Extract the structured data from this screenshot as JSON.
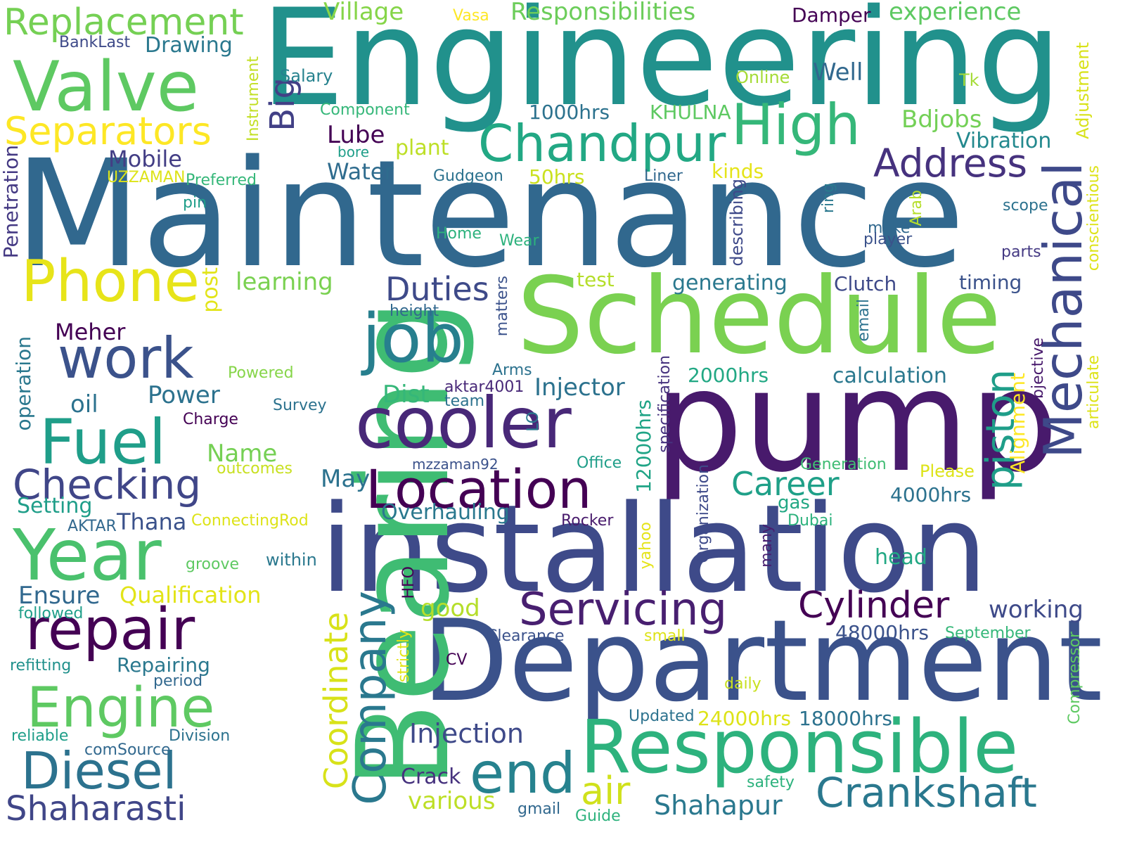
{
  "words": [
    {
      "text": "Engineering",
      "color": "#21918c",
      "vertical": false
    },
    {
      "text": "Maintenance",
      "color": "#31688e",
      "vertical": false
    },
    {
      "text": "installation",
      "color": "#3e4a89",
      "vertical": false
    },
    {
      "text": "pump",
      "color": "#481a6c",
      "vertical": false
    },
    {
      "text": "Schedule",
      "color": "#7ad151",
      "vertical": false
    },
    {
      "text": "Department",
      "color": "#3b528b",
      "vertical": false
    },
    {
      "text": "Bearing",
      "color": "#3fbc73",
      "vertical": true
    },
    {
      "text": "Responsible",
      "color": "#2db27d",
      "vertical": false
    },
    {
      "text": "Valve",
      "color": "#5ec962",
      "vertical": false
    },
    {
      "text": "Replacement",
      "color": "#75d054",
      "vertical": false
    },
    {
      "text": "Separators",
      "color": "#fde725",
      "vertical": false
    },
    {
      "text": "Chandpur",
      "color": "#22a884",
      "vertical": false
    },
    {
      "text": "High",
      "color": "#35b779",
      "vertical": false
    },
    {
      "text": "Address",
      "color": "#46327e",
      "vertical": false
    },
    {
      "text": "Mechanical",
      "color": "#3e4989",
      "vertical": true
    },
    {
      "text": "cooler",
      "color": "#482878",
      "vertical": false
    },
    {
      "text": "job",
      "color": "#277f8e",
      "vertical": false
    },
    {
      "text": "Location",
      "color": "#440154",
      "vertical": false
    },
    {
      "text": "Phone",
      "color": "#e7e419",
      "vertical": false
    },
    {
      "text": "work",
      "color": "#3b528b",
      "vertical": false
    },
    {
      "text": "Fuel",
      "color": "#1f9e89",
      "vertical": false
    },
    {
      "text": "Checking",
      "color": "#404688",
      "vertical": false
    },
    {
      "text": "Year",
      "color": "#4ac16d",
      "vertical": false
    },
    {
      "text": "repair",
      "color": "#440154",
      "vertical": false
    },
    {
      "text": "Engine",
      "color": "#5ec962",
      "vertical": false
    },
    {
      "text": "Diesel",
      "color": "#2c728e",
      "vertical": false
    },
    {
      "text": "Shaharasti",
      "color": "#404688",
      "vertical": false
    },
    {
      "text": "Company",
      "color": "#2a788e",
      "vertical": true
    },
    {
      "text": "Coordinate",
      "color": "#d8e219",
      "vertical": true
    },
    {
      "text": "end",
      "color": "#26828e",
      "vertical": false
    },
    {
      "text": "Crankshaft",
      "color": "#2a788e",
      "vertical": false
    },
    {
      "text": "Cylinder",
      "color": "#440154",
      "vertical": false
    },
    {
      "text": "Servicing",
      "color": "#481f70",
      "vertical": false
    },
    {
      "text": "piston",
      "color": "#1f9e89",
      "vertical": true
    },
    {
      "text": "Career",
      "color": "#1fa088",
      "vertical": false
    },
    {
      "text": "Duties",
      "color": "#3e4a89",
      "vertical": false
    },
    {
      "text": "air",
      "color": "#d0e11c",
      "vertical": false
    },
    {
      "text": "Shahapur",
      "color": "#2a788e",
      "vertical": false
    },
    {
      "text": "Injection",
      "color": "#3e4989",
      "vertical": false
    },
    {
      "text": "various",
      "color": "#bddf26",
      "vertical": false
    },
    {
      "text": "Big",
      "color": "#424086",
      "vertical": true
    },
    {
      "text": "Mobile",
      "color": "#433e85",
      "vertical": false
    },
    {
      "text": "Lube",
      "color": "#440154",
      "vertical": false
    },
    {
      "text": "Water",
      "color": "#2f6c8e",
      "vertical": false
    },
    {
      "text": "plant",
      "color": "#bddf26",
      "vertical": false
    },
    {
      "text": "Bdjobs",
      "color": "#73d056",
      "vertical": false
    },
    {
      "text": "Vibration",
      "color": "#23898e",
      "vertical": false
    },
    {
      "text": "Village",
      "color": "#86d549",
      "vertical": false
    },
    {
      "text": "Vasa",
      "color": "#fde725",
      "vertical": false
    },
    {
      "text": "Responsibilities",
      "color": "#6ccd5a",
      "vertical": false
    },
    {
      "text": "Damper",
      "color": "#440154",
      "vertical": false
    },
    {
      "text": "experience",
      "color": "#5ec962",
      "vertical": false
    },
    {
      "text": "BankLast",
      "color": "#3e4a89",
      "vertical": false
    },
    {
      "text": "Drawing",
      "color": "#2a788e",
      "vertical": false
    },
    {
      "text": "Salary",
      "color": "#26828e",
      "vertical": false
    },
    {
      "text": "Online",
      "color": "#a5db36",
      "vertical": false
    },
    {
      "text": "Tk",
      "color": "#a5db36",
      "vertical": false
    },
    {
      "text": "Well",
      "color": "#31688e",
      "vertical": false
    },
    {
      "text": "Component",
      "color": "#35b779",
      "vertical": false
    },
    {
      "text": "1000hrs",
      "color": "#2c728e",
      "vertical": false
    },
    {
      "text": "KHULNA",
      "color": "#5ec962",
      "vertical": false
    },
    {
      "text": "Adjustment",
      "color": "#d8e219",
      "vertical": true
    },
    {
      "text": "Instrument",
      "color": "#c2df23",
      "vertical": true
    },
    {
      "text": "bore",
      "color": "#1f9e89",
      "vertical": false
    },
    {
      "text": "UZZAMAN",
      "color": "#dde318",
      "vertical": false
    },
    {
      "text": "Preferred",
      "color": "#35b779",
      "vertical": false
    },
    {
      "text": "Gudgeon",
      "color": "#2c728e",
      "vertical": false
    },
    {
      "text": "50hrs",
      "color": "#cae11f",
      "vertical": false
    },
    {
      "text": "Liner",
      "color": "#31688e",
      "vertical": false
    },
    {
      "text": "kinds",
      "color": "#e5e419",
      "vertical": false
    },
    {
      "text": "Penetration",
      "color": "#443983",
      "vertical": true
    },
    {
      "text": "pin",
      "color": "#1f9e89",
      "vertical": false
    },
    {
      "text": "Home",
      "color": "#2db27d",
      "vertical": false
    },
    {
      "text": "Wear",
      "color": "#2db27d",
      "vertical": false
    },
    {
      "text": "make",
      "color": "#31688e",
      "vertical": false
    },
    {
      "text": "player",
      "color": "#3b528b",
      "vertical": false
    },
    {
      "text": "scope",
      "color": "#2c728e",
      "vertical": false
    },
    {
      "text": "parts",
      "color": "#443983",
      "vertical": false
    },
    {
      "text": "conscientious",
      "color": "#dde318",
      "vertical": true
    },
    {
      "text": "Arab",
      "color": "#b5de2b",
      "vertical": true
    },
    {
      "text": "ring",
      "color": "#2a788e",
      "vertical": true
    },
    {
      "text": "describing",
      "color": "#3e4989",
      "vertical": true
    },
    {
      "text": "post",
      "color": "#e2e418",
      "vertical": true
    },
    {
      "text": "learning",
      "color": "#7ad151",
      "vertical": false
    },
    {
      "text": "test",
      "color": "#b5de2b",
      "vertical": false
    },
    {
      "text": "generating",
      "color": "#2a788e",
      "vertical": false
    },
    {
      "text": "Clutch",
      "color": "#3e4989",
      "vertical": false
    },
    {
      "text": "timing",
      "color": "#3b528b",
      "vertical": false
    },
    {
      "text": "height",
      "color": "#31688e",
      "vertical": false
    },
    {
      "text": "matters",
      "color": "#3b528b",
      "vertical": true
    },
    {
      "text": "email",
      "color": "#2c728e",
      "vertical": true
    },
    {
      "text": "Objective",
      "color": "#481a6c",
      "vertical": true
    },
    {
      "text": "articulate",
      "color": "#dde318",
      "vertical": true
    },
    {
      "text": "Meher",
      "color": "#440154",
      "vertical": false
    },
    {
      "text": "Arms",
      "color": "#2c728e",
      "vertical": false
    },
    {
      "text": "aktar4001",
      "color": "#482878",
      "vertical": false
    },
    {
      "text": "team",
      "color": "#2c728e",
      "vertical": false
    },
    {
      "text": "Injector",
      "color": "#2c728e",
      "vertical": false
    },
    {
      "text": "specification",
      "color": "#46327e",
      "vertical": true
    },
    {
      "text": "2000hrs",
      "color": "#22a884",
      "vertical": false
    },
    {
      "text": "calculation",
      "color": "#2a788e",
      "vertical": false
    },
    {
      "text": "operation",
      "color": "#2a788e",
      "vertical": true
    },
    {
      "text": "Powered",
      "color": "#86d549",
      "vertical": false
    },
    {
      "text": "Power",
      "color": "#2c728e",
      "vertical": false
    },
    {
      "text": "Dist",
      "color": "#35b779",
      "vertical": false
    },
    {
      "text": "oil",
      "color": "#2c728e",
      "vertical": false
    },
    {
      "text": "Survey",
      "color": "#2c728e",
      "vertical": false
    },
    {
      "text": "Charge",
      "color": "#440154",
      "vertical": false
    },
    {
      "text": "LO",
      "color": "#2a788e",
      "vertical": true
    },
    {
      "text": "12000hrs",
      "color": "#20a486",
      "vertical": true
    },
    {
      "text": "Alignment",
      "color": "#fde725",
      "vertical": true
    },
    {
      "text": "Name",
      "color": "#75d054",
      "vertical": false
    },
    {
      "text": "outcomes",
      "color": "#c8e020",
      "vertical": false
    },
    {
      "text": "mzzaman92",
      "color": "#3b528b",
      "vertical": false
    },
    {
      "text": "Office",
      "color": "#1f9e89",
      "vertical": false
    },
    {
      "text": "Generation",
      "color": "#3fbc73",
      "vertical": false
    },
    {
      "text": "Please",
      "color": "#dde318",
      "vertical": false
    },
    {
      "text": "May",
      "color": "#2c728e",
      "vertical": false
    },
    {
      "text": "Organization",
      "color": "#3e4a89",
      "vertical": true
    },
    {
      "text": "4000hrs",
      "color": "#2c728e",
      "vertical": false
    },
    {
      "text": "Setting",
      "color": "#1f9e89",
      "vertical": false
    },
    {
      "text": "AKTAR",
      "color": "#31688e",
      "vertical": false
    },
    {
      "text": "Thana",
      "color": "#3b528b",
      "vertical": false
    },
    {
      "text": "ConnectingRod",
      "color": "#dde318",
      "vertical": false
    },
    {
      "text": "Overhauling",
      "color": "#2a788e",
      "vertical": false
    },
    {
      "text": "gas",
      "color": "#22a884",
      "vertical": false
    },
    {
      "text": "Rocker",
      "color": "#481a6c",
      "vertical": false
    },
    {
      "text": "Dubai",
      "color": "#2db27d",
      "vertical": false
    },
    {
      "text": "yahoo",
      "color": "#e5e419",
      "vertical": true
    },
    {
      "text": "many",
      "color": "#481f70",
      "vertical": true
    },
    {
      "text": "groove",
      "color": "#5ec962",
      "vertical": false
    },
    {
      "text": "within",
      "color": "#2a788e",
      "vertical": false
    },
    {
      "text": "head",
      "color": "#22a884",
      "vertical": false
    },
    {
      "text": "Ensure",
      "color": "#31688e",
      "vertical": false
    },
    {
      "text": "Qualification",
      "color": "#e2e418",
      "vertical": false
    },
    {
      "text": "HFO",
      "color": "#440154",
      "vertical": true
    },
    {
      "text": "followed",
      "color": "#1f9e89",
      "vertical": false
    },
    {
      "text": "good",
      "color": "#b5de2b",
      "vertical": false
    },
    {
      "text": "working",
      "color": "#3e4a89",
      "vertical": false
    },
    {
      "text": "refitting",
      "color": "#21918c",
      "vertical": false
    },
    {
      "text": "Repairing",
      "color": "#2a788e",
      "vertical": false
    },
    {
      "text": "period",
      "color": "#31688e",
      "vertical": false
    },
    {
      "text": "strictly",
      "color": "#e2e418",
      "vertical": true
    },
    {
      "text": "Clearance",
      "color": "#3b528b",
      "vertical": false
    },
    {
      "text": "small",
      "color": "#dde318",
      "vertical": false
    },
    {
      "text": "48000hrs",
      "color": "#3b528b",
      "vertical": false
    },
    {
      "text": "September",
      "color": "#35b779",
      "vertical": false
    },
    {
      "text": "Compressor",
      "color": "#5ec962",
      "vertical": true
    },
    {
      "text": "CV",
      "color": "#440154",
      "vertical": false
    },
    {
      "text": "daily",
      "color": "#c8e020",
      "vertical": false
    },
    {
      "text": "Updated",
      "color": "#2c728e",
      "vertical": false
    },
    {
      "text": "24000hrs",
      "color": "#dde318",
      "vertical": false
    },
    {
      "text": "18000hrs",
      "color": "#2c728e",
      "vertical": false
    },
    {
      "text": "reliable",
      "color": "#1f9e89",
      "vertical": false
    },
    {
      "text": "Division",
      "color": "#2c728e",
      "vertical": false
    },
    {
      "text": "comSource",
      "color": "#31688e",
      "vertical": false
    },
    {
      "text": "Crack",
      "color": "#46327e",
      "vertical": false
    },
    {
      "text": "safety",
      "color": "#2db27d",
      "vertical": false
    },
    {
      "text": "gmail",
      "color": "#31688e",
      "vertical": false
    },
    {
      "text": "Guide",
      "color": "#2db27d",
      "vertical": false
    }
  ]
}
